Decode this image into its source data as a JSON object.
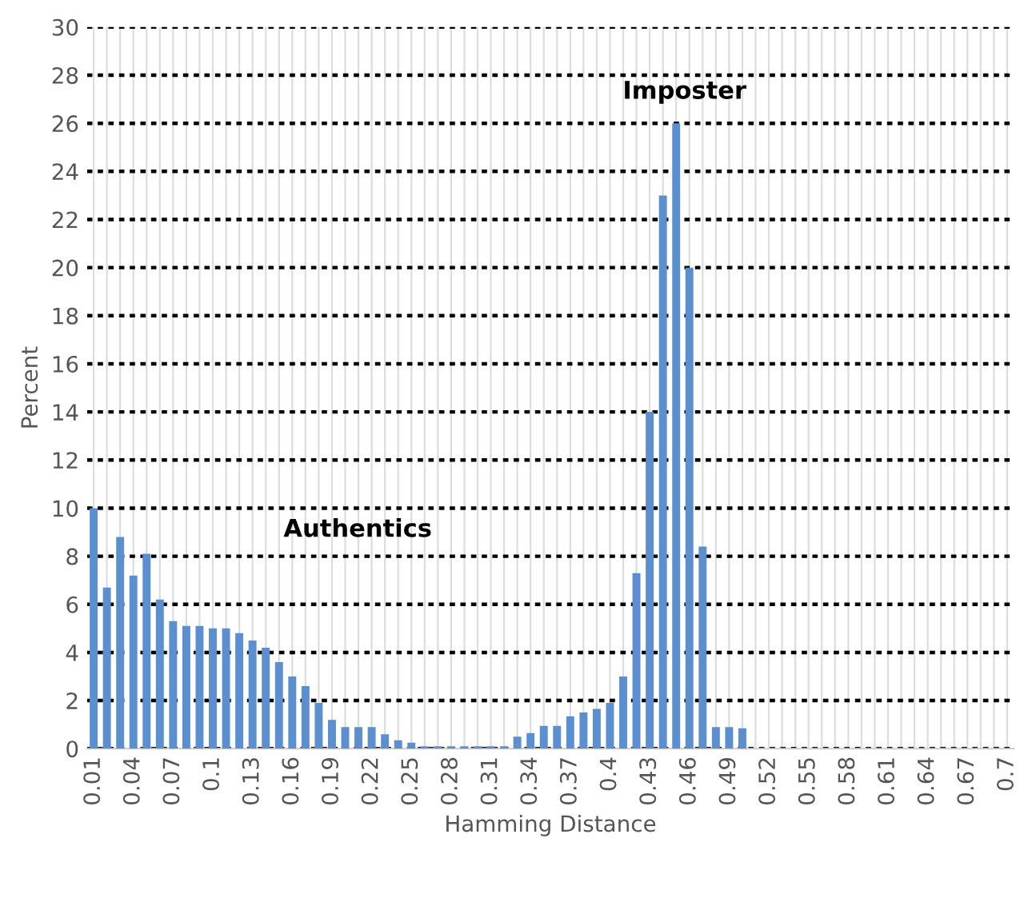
{
  "chart_data": {
    "type": "bar",
    "xlabel": "Hamming Distance",
    "ylabel": "Percent",
    "categories": [
      "0.01",
      null,
      null,
      "0.04",
      null,
      null,
      "0.07",
      null,
      null,
      "0.1",
      null,
      null,
      "0.13",
      null,
      null,
      "0.16",
      null,
      null,
      "0.19",
      null,
      null,
      "0.22",
      null,
      null,
      "0.25",
      null,
      null,
      "0.28",
      null,
      null,
      "0.31",
      null,
      null,
      "0.34",
      null,
      null,
      "0.37",
      null,
      null,
      "0.4",
      null,
      null,
      "0.43",
      null,
      null,
      "0.46",
      null,
      null,
      "0.49",
      null,
      null,
      "0.52",
      null,
      null,
      "0.55",
      null,
      null,
      "0.58",
      null,
      null,
      "0.61",
      null,
      null,
      "0.64",
      null,
      null,
      "0.67",
      null,
      null,
      "0.7"
    ],
    "values": [
      10,
      6.7,
      8.8,
      7.2,
      8.1,
      6.2,
      5.3,
      5.1,
      5.1,
      5.0,
      5.0,
      4.8,
      4.5,
      4.2,
      3.6,
      3.0,
      2.6,
      1.9,
      1.2,
      0.9,
      0.9,
      0.9,
      0.6,
      0.35,
      0.25,
      0.1,
      0.1,
      0.1,
      0.1,
      0.1,
      0.1,
      0.1,
      0.5,
      0.65,
      0.95,
      0.95,
      1.35,
      1.5,
      1.65,
      1.9,
      3.0,
      7.3,
      14,
      23,
      26,
      20,
      8.4,
      0.9,
      0.9,
      0.85,
      0,
      0,
      0,
      0,
      0,
      0,
      0,
      0,
      0,
      0,
      0,
      0,
      0,
      0,
      0,
      0,
      0,
      0,
      0,
      0
    ],
    "color": "#5b8fd0",
    "ylim": [
      0,
      30
    ],
    "yticks": [
      0,
      2,
      4,
      6,
      8,
      10,
      12,
      14,
      16,
      18,
      20,
      22,
      24,
      26,
      28,
      30
    ],
    "grid": true,
    "legend": false,
    "annotations": [
      "Authentics",
      "Imposter"
    ]
  }
}
